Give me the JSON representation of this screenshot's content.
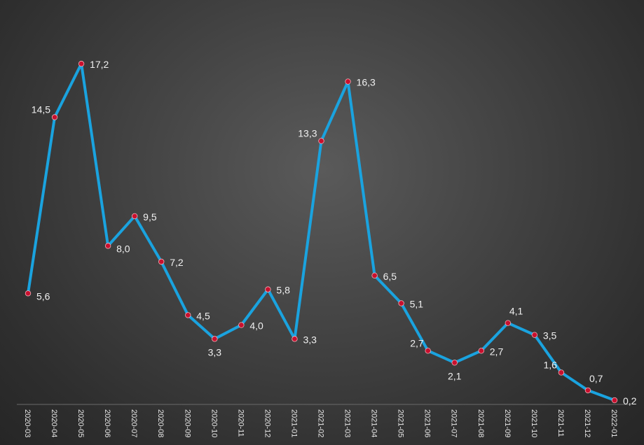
{
  "chart_data": {
    "type": "line",
    "title": "",
    "xlabel": "",
    "ylabel": "",
    "categories": [
      "2020-03",
      "2020-04",
      "2020-05",
      "2020-06",
      "2020-07",
      "2020-08",
      "2020-09",
      "2020-10",
      "2020-11",
      "2020-12",
      "2021-01",
      "2021-02",
      "2021-03",
      "2021-04",
      "2021-05",
      "2021-06",
      "2021-07",
      "2021-08",
      "2021-09",
      "2021-10",
      "2021-11",
      "2021-12",
      "2022-01"
    ],
    "values": [
      5.6,
      14.5,
      17.2,
      8.0,
      9.5,
      7.2,
      4.5,
      3.3,
      4.0,
      5.8,
      3.3,
      13.3,
      16.3,
      6.5,
      5.1,
      2.7,
      2.1,
      2.7,
      4.1,
      3.5,
      1.6,
      0.7,
      0.2
    ],
    "data_labels": [
      "5,6",
      "14,5",
      "17,2",
      "8,0",
      "9,5",
      "7,2",
      "4,5",
      "3,3",
      "4,0",
      "5,8",
      "3,3",
      "13,3",
      "16,3",
      "6,5",
      "5,1",
      "2,7",
      "2,1",
      "2,7",
      "4,1",
      "3,5",
      "1,6",
      "0,7",
      "0,2"
    ],
    "label_placement": [
      "right",
      "left",
      "right",
      "right",
      "right",
      "right",
      "right",
      "below",
      "right",
      "right",
      "right",
      "left",
      "right",
      "right",
      "right",
      "left",
      "below",
      "right",
      "above",
      "right",
      "left",
      "above",
      "right"
    ],
    "ylim": [
      0,
      17.5
    ],
    "grid": false,
    "legend": "none",
    "colors": {
      "line": "#1aa3df",
      "marker": "#c8102e",
      "axis": "#6a6a6a",
      "text": "#f0f0f0"
    }
  }
}
